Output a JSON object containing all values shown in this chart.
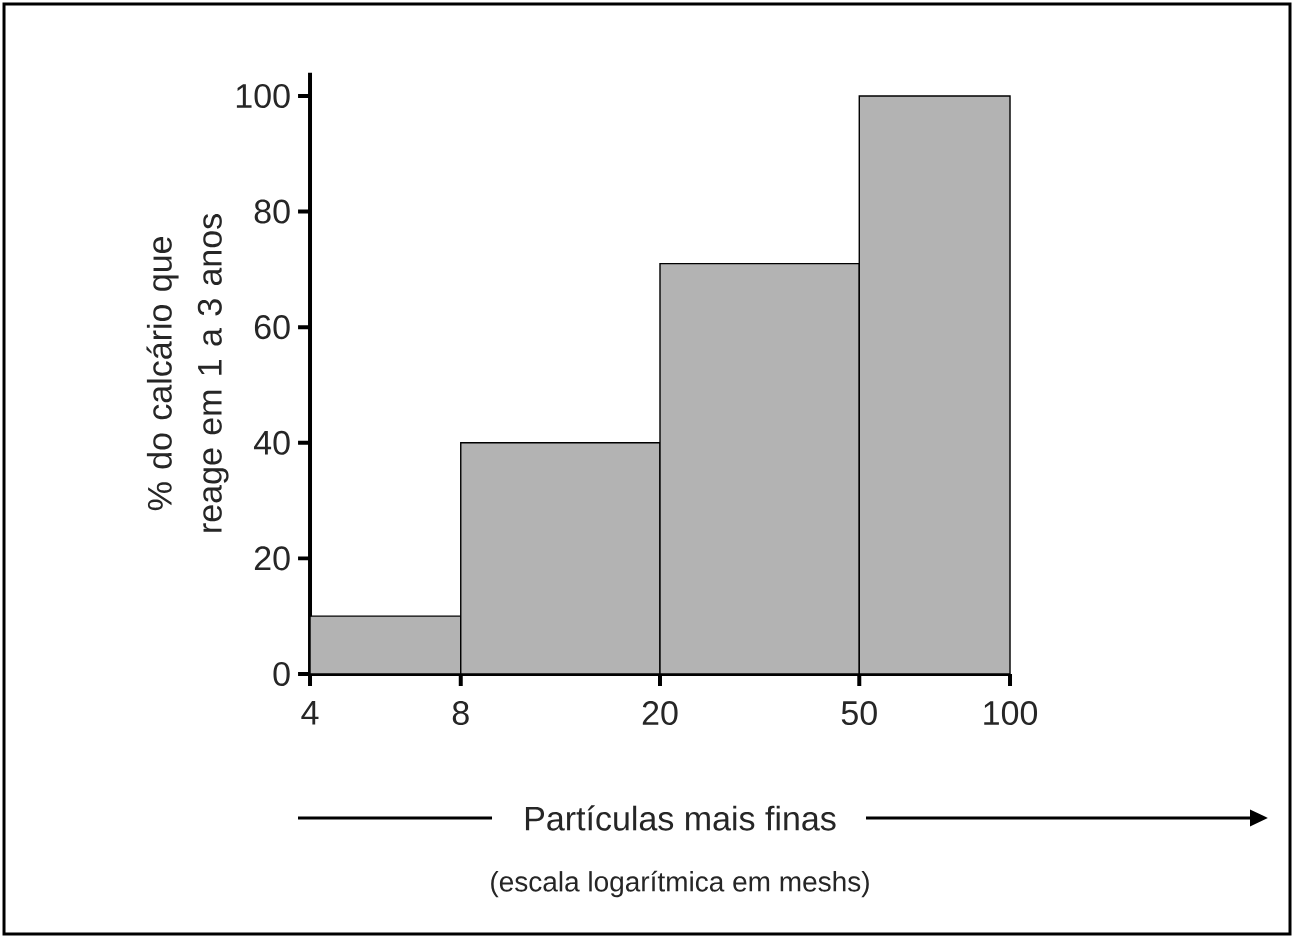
{
  "chart_data": {
    "type": "histogram",
    "bins": [
      4,
      8,
      20,
      50,
      100
    ],
    "values": [
      10,
      40,
      71,
      100
    ],
    "color": "#b3b3b3",
    "xlabel": "Partículas mais finas",
    "ylabel": "% do calcário que reage em 1 a 3 anos",
    "annotations": [
      "(escala logarítmica em meshs)"
    ],
    "log": "x",
    "xlim": [
      4,
      100
    ],
    "ylim": [
      0,
      104
    ],
    "xticks": [
      4,
      8,
      20,
      50,
      100
    ],
    "yticks": [
      0,
      20,
      40,
      60,
      80,
      100
    ],
    "grid": false
  }
}
